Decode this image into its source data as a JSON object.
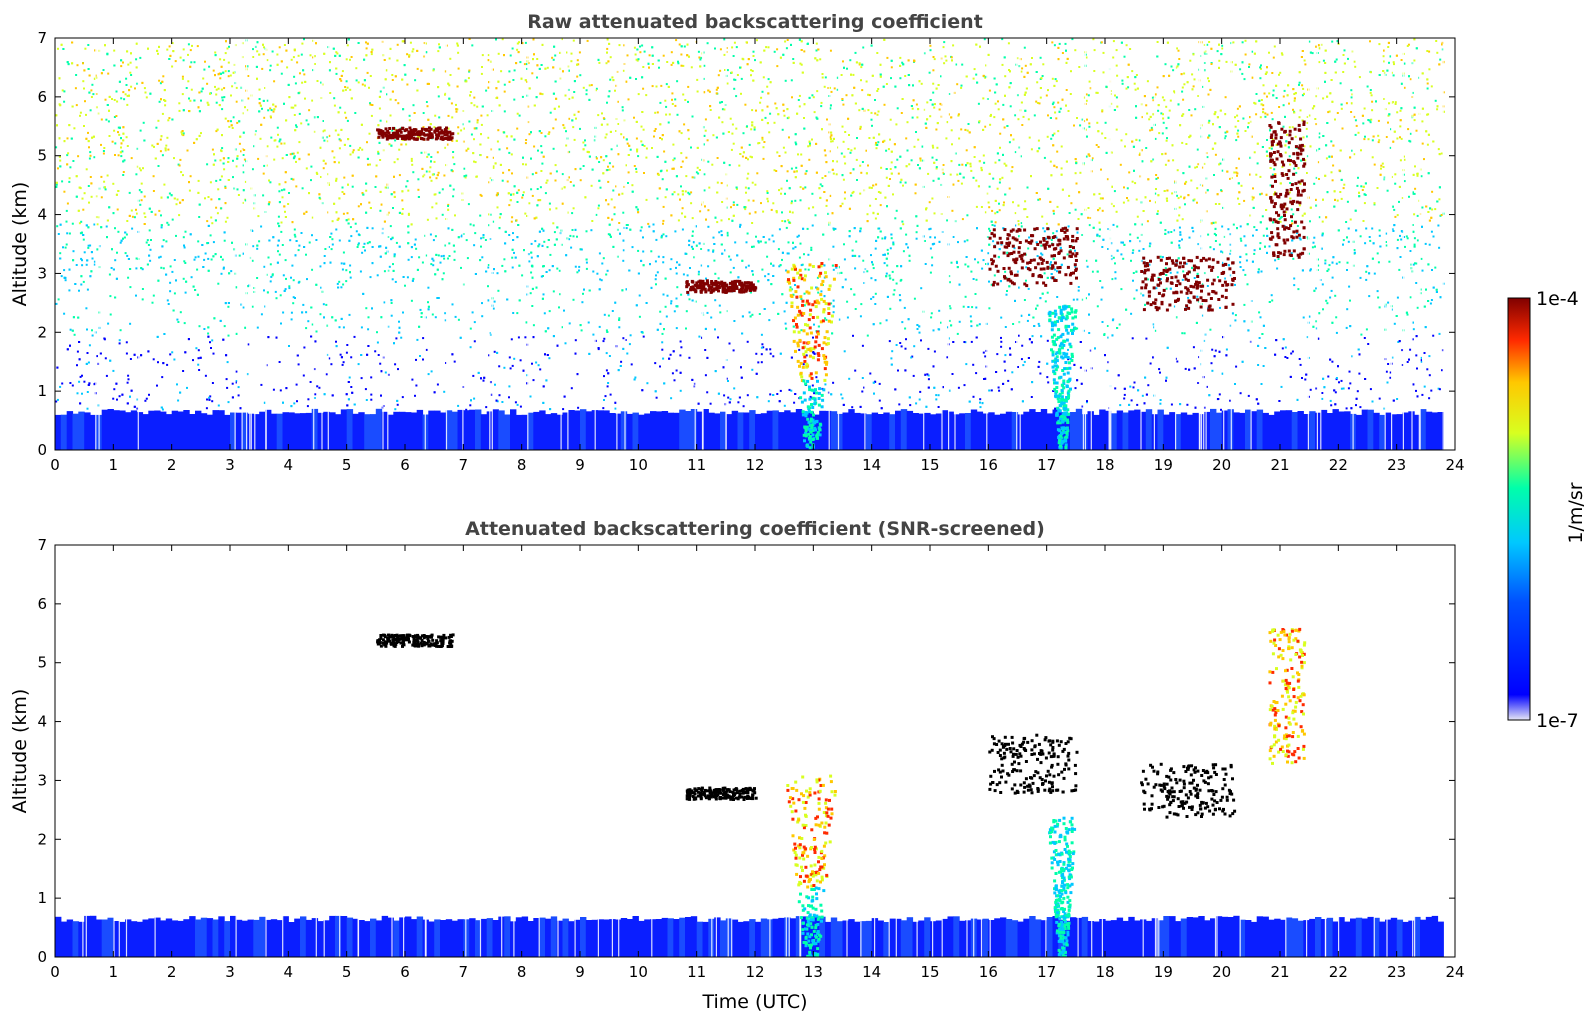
{
  "colors": {
    "colormap": [
      "#e6e6f5",
      "#0000ff",
      "#00c8ff",
      "#00ffaa",
      "#d8ff20",
      "#ffc800",
      "#ff2a00",
      "#800000"
    ],
    "background": "#ffffff",
    "title": "#444444"
  },
  "colorbar": {
    "label": "1/m/sr",
    "max_label": "1e-4",
    "min_label": "1e-7",
    "scale": "log"
  },
  "chart_data": [
    {
      "type": "heatmap",
      "title": "Raw attenuated backscattering coefficient",
      "xlabel": "",
      "ylabel": "Altitude (km)",
      "xlim": [
        0,
        24
      ],
      "ylim": [
        0,
        7
      ],
      "x_ticks": [
        "0",
        "1",
        "2",
        "3",
        "4",
        "5",
        "6",
        "7",
        "8",
        "9",
        "10",
        "11",
        "12",
        "13",
        "14",
        "15",
        "16",
        "17",
        "18",
        "19",
        "20",
        "21",
        "22",
        "23",
        "24"
      ],
      "y_ticks": [
        "0",
        "1",
        "2",
        "3",
        "4",
        "5",
        "6",
        "7"
      ],
      "data_extent_hours": [
        0,
        23.8
      ],
      "boundary_layer_top_km": 0.7,
      "noise": "dense speckle increasing with altitude",
      "features": [
        {
          "kind": "virga",
          "t": [
            12.5,
            13.4
          ],
          "alt_km": [
            0.0,
            3.2
          ],
          "level": "high"
        },
        {
          "kind": "virga",
          "t": [
            17.0,
            17.5
          ],
          "alt_km": [
            0.0,
            2.5
          ],
          "level": "medium"
        },
        {
          "kind": "cloud",
          "t": [
            5.5,
            6.8
          ],
          "alt_km": [
            5.3,
            5.5
          ],
          "level": "max"
        },
        {
          "kind": "cloud",
          "t": [
            10.8,
            12.0
          ],
          "alt_km": [
            2.7,
            2.9
          ],
          "level": "max"
        },
        {
          "kind": "cloud",
          "t": [
            16.0,
            17.5
          ],
          "alt_km": [
            2.8,
            3.8
          ],
          "level": "max"
        },
        {
          "kind": "cloud",
          "t": [
            18.6,
            20.2
          ],
          "alt_km": [
            2.4,
            3.3
          ],
          "level": "max"
        },
        {
          "kind": "cloud",
          "t": [
            20.8,
            21.4
          ],
          "alt_km": [
            3.3,
            5.6
          ],
          "level": "max"
        }
      ]
    },
    {
      "type": "heatmap",
      "title": "Attenuated backscattering coefficient (SNR-screened)",
      "xlabel": "Time (UTC)",
      "ylabel": "Altitude (km)",
      "xlim": [
        0,
        24
      ],
      "ylim": [
        0,
        7
      ],
      "x_ticks": [
        "0",
        "1",
        "2",
        "3",
        "4",
        "5",
        "6",
        "7",
        "8",
        "9",
        "10",
        "11",
        "12",
        "13",
        "14",
        "15",
        "16",
        "17",
        "18",
        "19",
        "20",
        "21",
        "22",
        "23",
        "24"
      ],
      "y_ticks": [
        "0",
        "1",
        "2",
        "3",
        "4",
        "5",
        "6",
        "7"
      ],
      "data_extent_hours": [
        0,
        23.8
      ],
      "boundary_layer_top_km": 0.7,
      "features": [
        {
          "kind": "virga",
          "t": [
            12.5,
            13.4
          ],
          "alt_km": [
            0.0,
            3.1
          ],
          "level": "high"
        },
        {
          "kind": "virga",
          "t": [
            17.0,
            17.5
          ],
          "alt_km": [
            0.0,
            2.4
          ],
          "level": "medium"
        },
        {
          "kind": "cloud",
          "t": [
            5.5,
            6.8
          ],
          "alt_km": [
            5.3,
            5.5
          ],
          "level": "black"
        },
        {
          "kind": "cloud",
          "t": [
            10.8,
            12.0
          ],
          "alt_km": [
            2.7,
            2.9
          ],
          "level": "black"
        },
        {
          "kind": "cloud",
          "t": [
            16.0,
            17.5
          ],
          "alt_km": [
            2.8,
            3.8
          ],
          "level": "black"
        },
        {
          "kind": "cloud",
          "t": [
            18.6,
            20.2
          ],
          "alt_km": [
            2.4,
            3.3
          ],
          "level": "black"
        },
        {
          "kind": "cloud",
          "t": [
            20.8,
            21.4
          ],
          "alt_km": [
            3.3,
            5.6
          ],
          "level": "high"
        }
      ]
    }
  ]
}
